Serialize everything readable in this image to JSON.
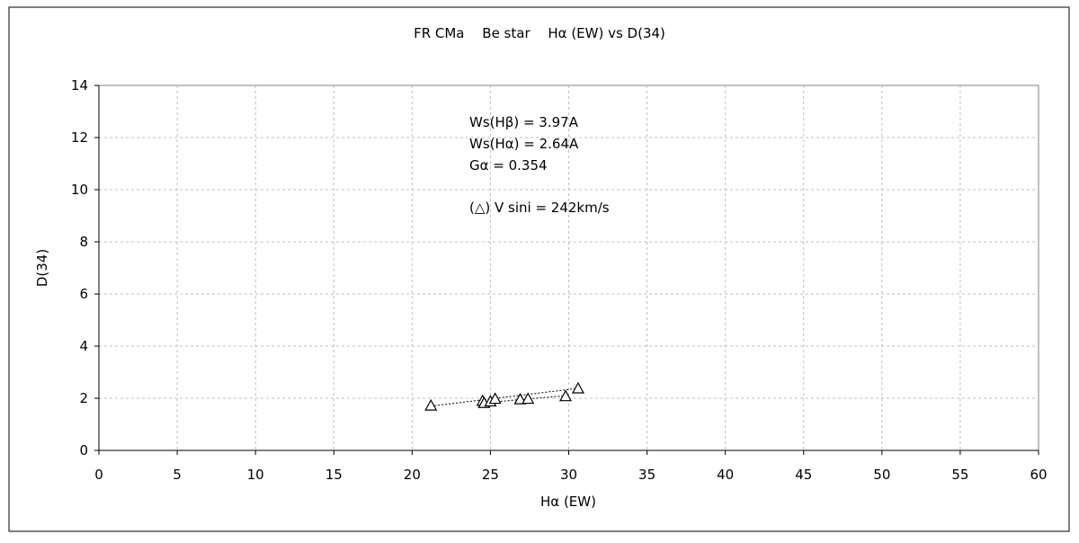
{
  "chart_data": {
    "type": "scatter",
    "title": "FR CMa　 Be star　 Hα (EW) vs D(34)",
    "xlabel": "Hα (EW)",
    "ylabel": "D(34)",
    "xlim": [
      0,
      60
    ],
    "ylim": [
      0,
      14
    ],
    "x_ticks": [
      "0",
      "5",
      "10",
      "15",
      "20",
      "25",
      "30",
      "35",
      "40",
      "45",
      "50",
      "55",
      "60"
    ],
    "y_ticks": [
      "0",
      "2",
      "4",
      "6",
      "8",
      "10",
      "12",
      "14"
    ],
    "grid": true,
    "legend": "none",
    "marker": "open-triangle",
    "series": [
      {
        "points": [
          {
            "x": 21.2,
            "y": 1.72
          },
          {
            "x": 24.5,
            "y": 1.9
          },
          {
            "x": 24.6,
            "y": 1.82
          },
          {
            "x": 25.0,
            "y": 1.88
          },
          {
            "x": 25.3,
            "y": 1.98
          },
          {
            "x": 26.9,
            "y": 1.96
          },
          {
            "x": 27.4,
            "y": 1.98
          },
          {
            "x": 29.8,
            "y": 2.08
          },
          {
            "x": 30.6,
            "y": 2.38
          }
        ]
      }
    ],
    "trend_lines": [
      {
        "from": {
          "x": 21.2,
          "y": 1.7
        },
        "to": {
          "x": 30.6,
          "y": 2.38
        }
      },
      {
        "from": {
          "x": 24.5,
          "y": 1.82
        },
        "to": {
          "x": 29.8,
          "y": 2.1
        }
      }
    ],
    "annotations": [
      "Ws(Hβ) = 3.97A",
      "Ws(Hα) = 2.64A",
      "Gα = 0.354",
      "(△) V sini = 242km/s"
    ]
  }
}
